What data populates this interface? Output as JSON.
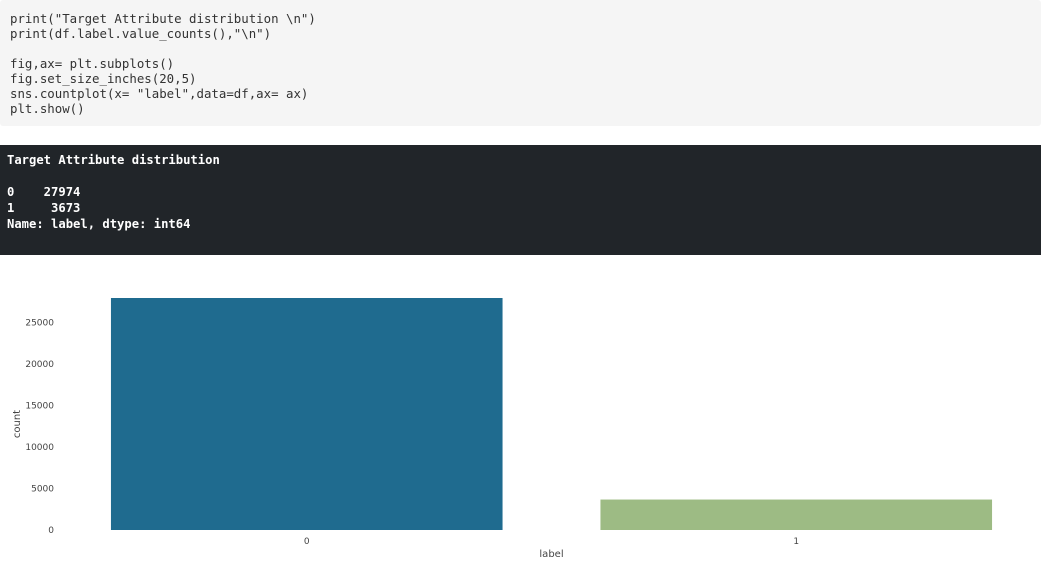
{
  "code_cell": {
    "lines": [
      "print(\"Target Attribute distribution \\n\")",
      "print(df.label.value_counts(),\"\\n\")",
      "",
      "fig,ax= plt.subplots()",
      "fig.set_size_inches(20,5)",
      "sns.countplot(x= \"label\",data=df,ax= ax)",
      "plt.show()"
    ]
  },
  "output_cell": {
    "lines": [
      "Target Attribute distribution",
      "",
      "0    27974",
      "1     3673",
      "Name: label, dtype: int64"
    ]
  },
  "chart_data": {
    "type": "bar",
    "categories": [
      "0",
      "1"
    ],
    "values": [
      27974,
      3673
    ],
    "colors": [
      "#1f6b8f",
      "#9dbb84"
    ],
    "xlabel": "label",
    "ylabel": "count",
    "yticks": [
      0,
      5000,
      10000,
      15000,
      20000,
      25000
    ],
    "ylim": [
      0,
      27974
    ],
    "grid": false,
    "legend": "none"
  }
}
